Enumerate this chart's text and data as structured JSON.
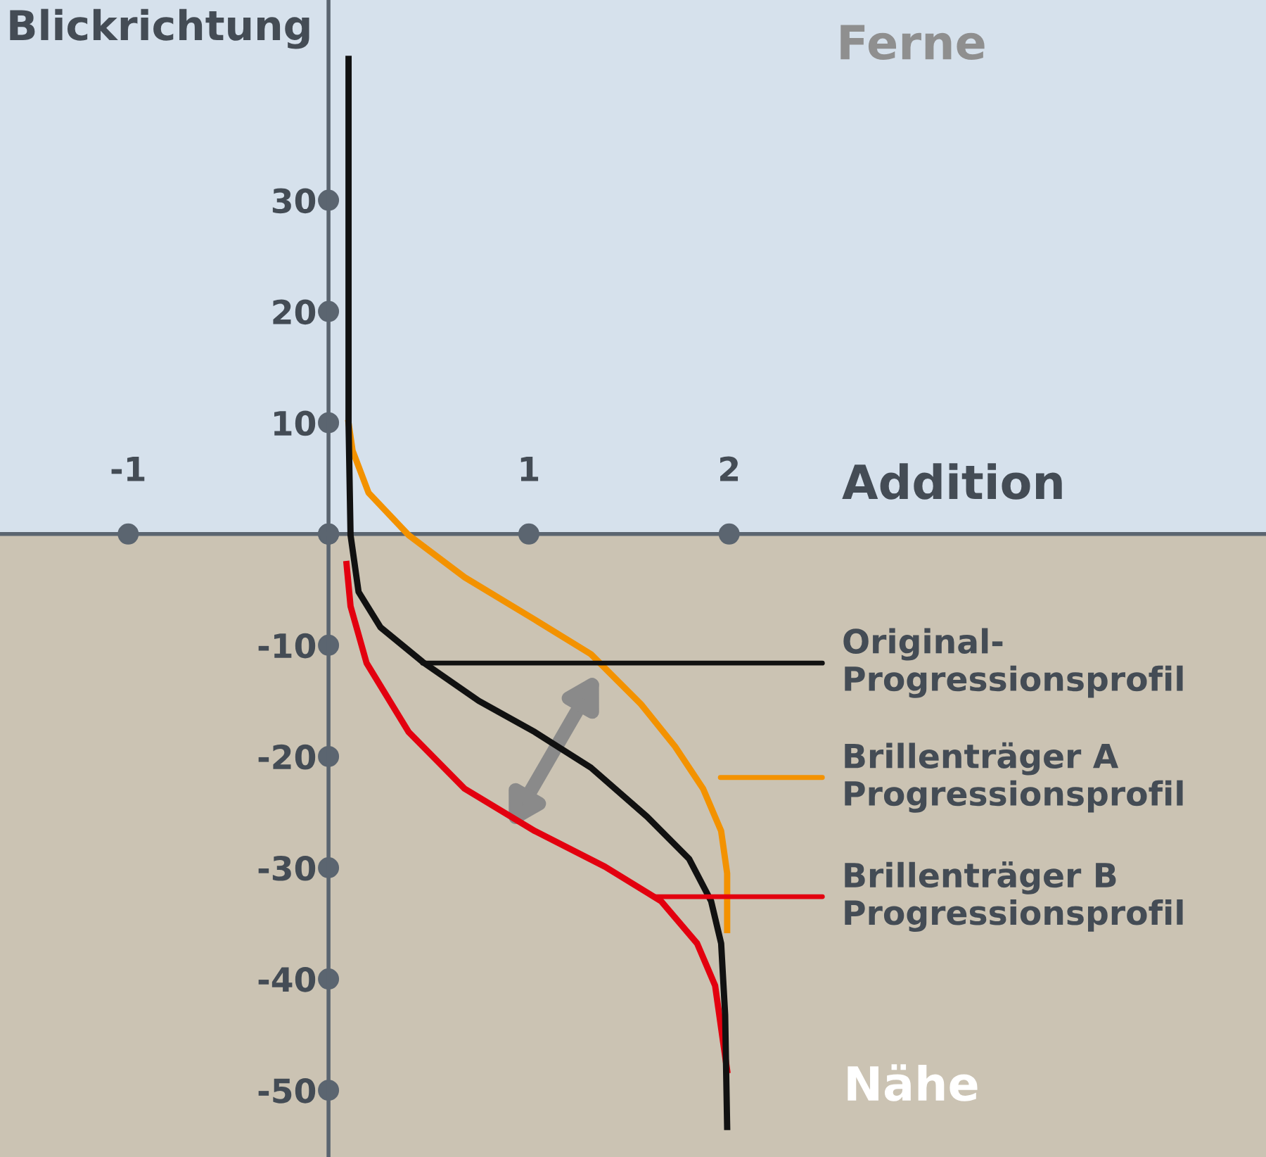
{
  "chart_data": {
    "type": "line",
    "xlabel": "Addition",
    "ylabel": "Blickrichtung",
    "xlim": [
      -1.64,
      4.68
    ],
    "ylim": [
      -56,
      48
    ],
    "xticks": [
      -1,
      {
        "value": 0,
        "label": null
      },
      1,
      2
    ],
    "yticks": [
      -50,
      -40,
      -30,
      -20,
      -10,
      {
        "value": 0,
        "label": null
      },
      10,
      20,
      30
    ],
    "grid": false,
    "legend": false,
    "line_style": "solid",
    "marker": "none",
    "series": [
      {
        "color": "#f39200",
        "x": [
          0.1,
          0.12,
          0.2,
          0.4,
          0.68,
          1.03,
          1.31,
          1.56,
          1.73,
          1.87,
          1.96,
          1.99,
          1.99
        ],
        "values": [
          10.0,
          7.5,
          3.7,
          -0.1,
          -3.9,
          -7.7,
          -10.8,
          -15.3,
          -19.1,
          -22.9,
          -26.7,
          -30.5,
          -35.6
        ]
      },
      {
        "color": "#e3000f",
        "x": [
          0.09,
          0.11,
          0.19,
          0.4,
          0.68,
          1.03,
          1.38,
          1.66,
          1.84,
          1.93,
          1.97,
          1.99
        ],
        "values": [
          -2.7,
          -6.5,
          -11.6,
          -17.8,
          -22.9,
          -26.7,
          -29.9,
          -33.0,
          -36.8,
          -40.6,
          -45.7,
          -48.2
        ]
      },
      {
        "color": "#111111",
        "x": [
          0.1,
          0.1,
          0.11,
          0.15,
          0.26,
          0.47,
          0.75,
          1.03,
          1.31,
          1.59,
          1.8,
          1.91,
          1.96,
          1.98,
          1.99
        ],
        "values": [
          42.7,
          10.0,
          -0.1,
          -5.2,
          -8.4,
          -11.5,
          -15.0,
          -17.8,
          -21.0,
          -25.4,
          -29.2,
          -33.0,
          -36.8,
          -43.2,
          -53.3
        ]
      }
    ],
    "bands": [
      {
        "axis": "y",
        "from": 0,
        "to": 48,
        "color": "#d6e1ec",
        "label": "Ferne"
      },
      {
        "axis": "y",
        "from": -56,
        "to": 0,
        "color": "#cbc3b3",
        "label": "Nähe"
      }
    ],
    "annotations": [
      {
        "text": "Original-\nProgressionsprofil",
        "x": 0.47,
        "y": -11.6
      },
      "Brillenträger A\nProgressionsprofil",
      {
        "text": "Brillenträger B\nProgressionsprofil",
        "x": 1.62,
        "y": -32.6
      }
    ]
  }
}
